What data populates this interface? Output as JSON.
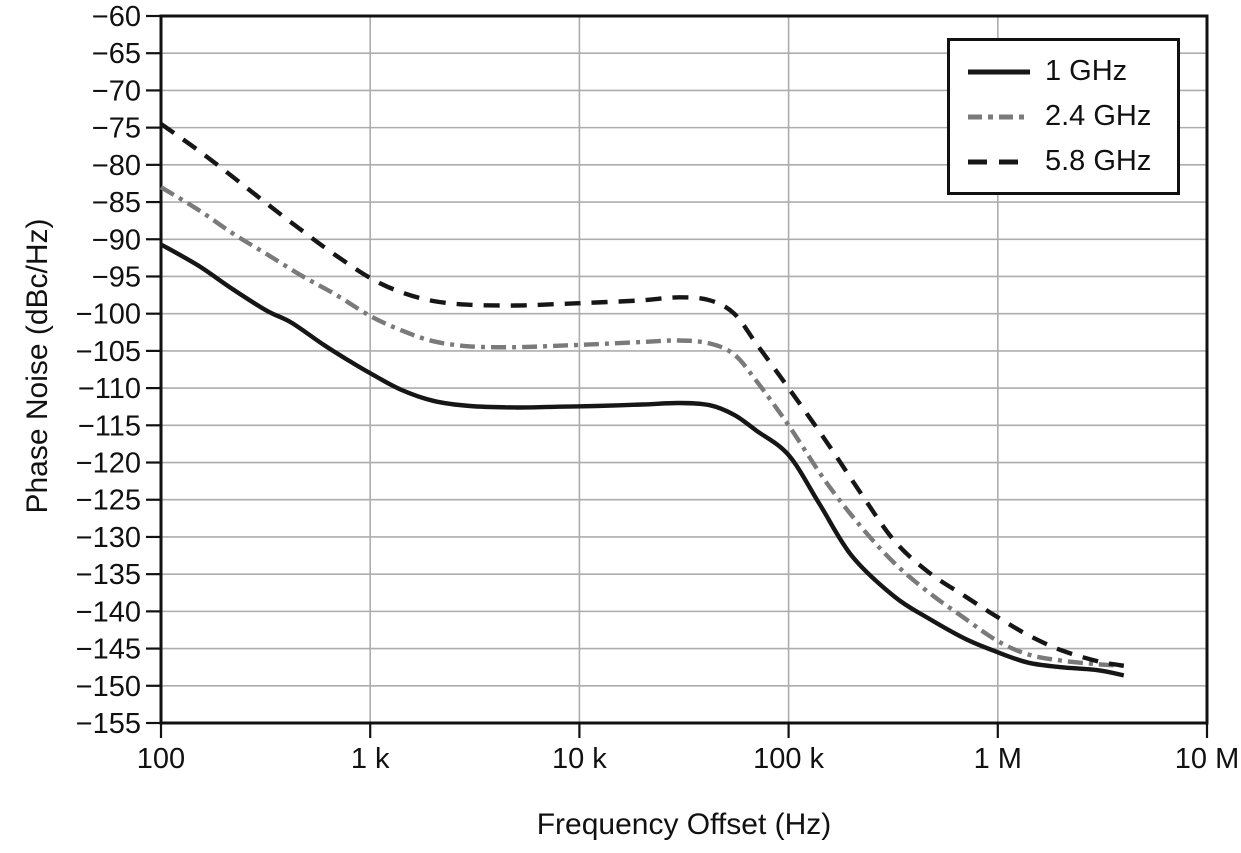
{
  "chart_data": {
    "type": "line",
    "title": "",
    "xlabel": "Frequency Offset (Hz)",
    "ylabel": "Phase Noise (dBc/Hz)",
    "x_scale": "log",
    "xlim": [
      100,
      10000000
    ],
    "ylim": [
      -155,
      -60
    ],
    "grid": true,
    "legend_position": "top-right",
    "x_ticks": [
      {
        "value": 100,
        "label": "100"
      },
      {
        "value": 1000,
        "label": "1 k"
      },
      {
        "value": 10000,
        "label": "10 k"
      },
      {
        "value": 100000,
        "label": "100 k"
      },
      {
        "value": 1000000,
        "label": "1 M"
      },
      {
        "value": 10000000,
        "label": "10 M"
      }
    ],
    "y_ticks": [
      {
        "value": -60,
        "label": "−60"
      },
      {
        "value": -65,
        "label": "−65"
      },
      {
        "value": -70,
        "label": "−70"
      },
      {
        "value": -75,
        "label": "−75"
      },
      {
        "value": -80,
        "label": "−80"
      },
      {
        "value": -85,
        "label": "−85"
      },
      {
        "value": -90,
        "label": "−90"
      },
      {
        "value": -95,
        "label": "−95"
      },
      {
        "value": -100,
        "label": "−100"
      },
      {
        "value": -105,
        "label": "−105"
      },
      {
        "value": -110,
        "label": "−110"
      },
      {
        "value": -115,
        "label": "−115"
      },
      {
        "value": -120,
        "label": "−120"
      },
      {
        "value": -125,
        "label": "−125"
      },
      {
        "value": -130,
        "label": "−130"
      },
      {
        "value": -135,
        "label": "−135"
      },
      {
        "value": -140,
        "label": "−140"
      },
      {
        "value": -145,
        "label": "−145"
      },
      {
        "value": -150,
        "label": "−150"
      },
      {
        "value": -155,
        "label": "−155"
      }
    ],
    "series": [
      {
        "name": "1 GHz",
        "style": "solid",
        "color": "#161616",
        "points": [
          [
            100,
            -90.7
          ],
          [
            150,
            -93.5
          ],
          [
            220,
            -96.7
          ],
          [
            320,
            -99.6
          ],
          [
            420,
            -101.2
          ],
          [
            600,
            -104.2
          ],
          [
            800,
            -106.4
          ],
          [
            1000,
            -108.0
          ],
          [
            1400,
            -110.2
          ],
          [
            2000,
            -111.7
          ],
          [
            3000,
            -112.4
          ],
          [
            5000,
            -112.6
          ],
          [
            8000,
            -112.5
          ],
          [
            12000,
            -112.4
          ],
          [
            20000,
            -112.2
          ],
          [
            30000,
            -112.0
          ],
          [
            42000,
            -112.3
          ],
          [
            55000,
            -113.6
          ],
          [
            70000,
            -115.7
          ],
          [
            100000,
            -119.0
          ],
          [
            140000,
            -125.5
          ],
          [
            200000,
            -132.5
          ],
          [
            320000,
            -138.0
          ],
          [
            470000,
            -141.0
          ],
          [
            700000,
            -143.7
          ],
          [
            1000000,
            -145.5
          ],
          [
            1400000,
            -146.9
          ],
          [
            2000000,
            -147.5
          ],
          [
            3000000,
            -147.9
          ],
          [
            4000000,
            -148.6
          ]
        ]
      },
      {
        "name": "2.4 GHz",
        "style": "dash-dot",
        "color": "#7a7a7a",
        "points": [
          [
            100,
            -83.0
          ],
          [
            150,
            -86.0
          ],
          [
            220,
            -89.2
          ],
          [
            320,
            -92.0
          ],
          [
            470,
            -94.9
          ],
          [
            680,
            -97.4
          ],
          [
            1000,
            -100.3
          ],
          [
            1400,
            -102.2
          ],
          [
            2000,
            -103.7
          ],
          [
            3000,
            -104.4
          ],
          [
            5000,
            -104.5
          ],
          [
            8000,
            -104.3
          ],
          [
            12000,
            -104.1
          ],
          [
            20000,
            -103.8
          ],
          [
            30000,
            -103.6
          ],
          [
            42000,
            -104.0
          ],
          [
            55000,
            -105.5
          ],
          [
            70000,
            -109.0
          ],
          [
            100000,
            -115.0
          ],
          [
            150000,
            -122.5
          ],
          [
            220000,
            -128.5
          ],
          [
            320000,
            -133.5
          ],
          [
            470000,
            -137.5
          ],
          [
            700000,
            -141.0
          ],
          [
            1000000,
            -144.0
          ],
          [
            1400000,
            -145.8
          ],
          [
            2000000,
            -146.6
          ],
          [
            3000000,
            -147.1
          ],
          [
            4000000,
            -147.3
          ]
        ]
      },
      {
        "name": "5.8 GHz",
        "style": "dashed",
        "color": "#161616",
        "points": [
          [
            100,
            -74.5
          ],
          [
            150,
            -78.0
          ],
          [
            220,
            -81.6
          ],
          [
            320,
            -85.2
          ],
          [
            470,
            -88.8
          ],
          [
            680,
            -92.1
          ],
          [
            1000,
            -95.2
          ],
          [
            1400,
            -97.1
          ],
          [
            2000,
            -98.3
          ],
          [
            3000,
            -98.8
          ],
          [
            5000,
            -98.9
          ],
          [
            8000,
            -98.7
          ],
          [
            12000,
            -98.5
          ],
          [
            20000,
            -98.2
          ],
          [
            30000,
            -97.8
          ],
          [
            42000,
            -98.2
          ],
          [
            55000,
            -100.0
          ],
          [
            70000,
            -104.0
          ],
          [
            100000,
            -110.0
          ],
          [
            150000,
            -117.0
          ],
          [
            220000,
            -124.0
          ],
          [
            320000,
            -130.5
          ],
          [
            470000,
            -134.8
          ],
          [
            700000,
            -138.0
          ],
          [
            1000000,
            -140.8
          ],
          [
            1400000,
            -143.2
          ],
          [
            2000000,
            -145.2
          ],
          [
            3000000,
            -146.7
          ],
          [
            4000000,
            -147.3
          ]
        ]
      }
    ],
    "colors": {
      "grid": "#adadad",
      "axis": "#111111",
      "background": "#ffffff"
    }
  }
}
